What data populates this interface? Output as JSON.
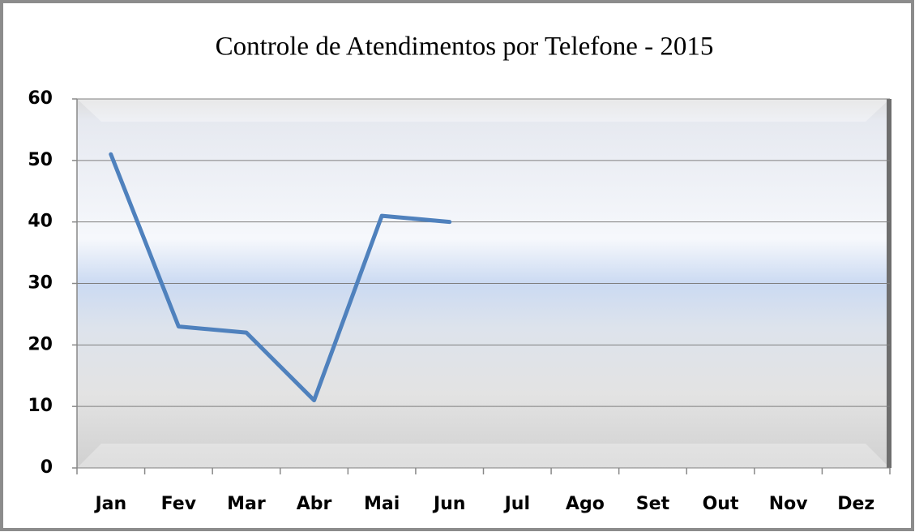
{
  "chart_data": {
    "type": "line",
    "title": "Controle de Atendimentos por Telefone - 2015",
    "categories": [
      "Jan",
      "Fev",
      "Mar",
      "Abr",
      "Mai",
      "Jun",
      "Jul",
      "Ago",
      "Set",
      "Out",
      "Nov",
      "Dez"
    ],
    "values": [
      51,
      23,
      22,
      11,
      41,
      40,
      null,
      null,
      null,
      null,
      null,
      null
    ],
    "color": "#4f81bd",
    "ylim": [
      0,
      60
    ],
    "yticks": [
      0,
      10,
      20,
      30,
      40,
      50,
      60
    ],
    "grid": true
  }
}
